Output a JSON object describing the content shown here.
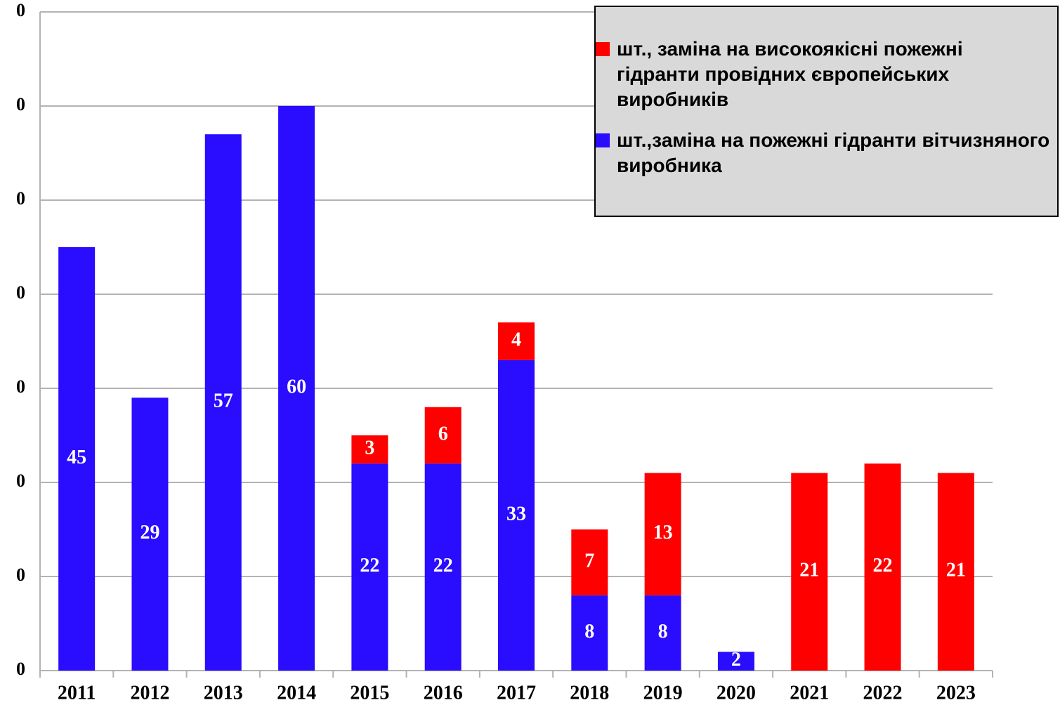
{
  "chart_data": {
    "type": "stacked_bar",
    "categories": [
      "2011",
      "2012",
      "2013",
      "2014",
      "2015",
      "2016",
      "2017",
      "2018",
      "2019",
      "2020",
      "2021",
      "2022",
      "2023"
    ],
    "series": [
      {
        "name": "шт., заміна на високоякісні пожежні гідранти провідних європейських виробників",
        "color": "#ff0000",
        "values": [
          null,
          null,
          null,
          null,
          3,
          6,
          4,
          7,
          13,
          null,
          21,
          22,
          21
        ]
      },
      {
        "name": "шт.,заміна на пожежні гідранти вітчизняного виробника",
        "color": "#2a0cff",
        "values": [
          45,
          29,
          57,
          60,
          22,
          22,
          33,
          8,
          8,
          2,
          null,
          null,
          null
        ]
      }
    ],
    "ylim": [
      0,
      70
    ],
    "yticks": [
      0,
      {
        "value": 10,
        "label": "0"
      },
      {
        "value": 20,
        "label": "0"
      },
      {
        "value": 30,
        "label": "0"
      },
      {
        "value": 40,
        "label": "0"
      },
      {
        "value": 50,
        "label": "0"
      },
      {
        "value": 60,
        "label": "0"
      },
      {
        "value": 70,
        "label": "0"
      }
    ],
    "grid": true,
    "legend": "top-right"
  }
}
